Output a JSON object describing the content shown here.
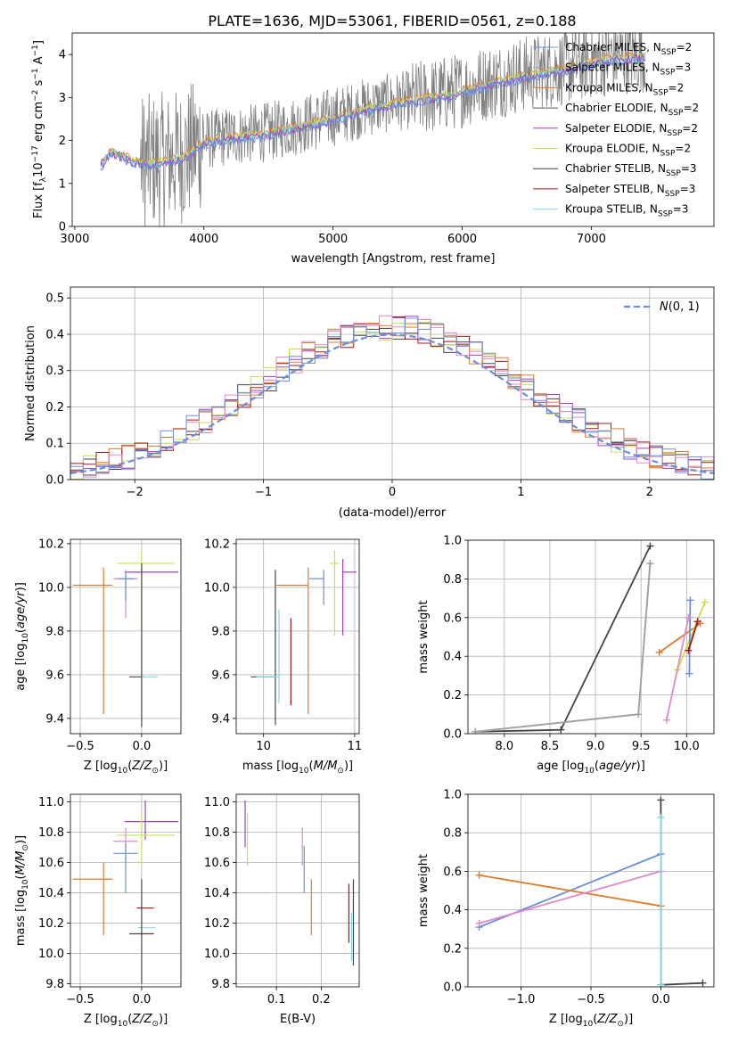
{
  "figure_title": "PLATE=1636, MJD=53061, FIBERID=0561, z=0.188",
  "colors": {
    "chabrier_miles": "#6a8fd9",
    "salpeter_miles": "#a0a0a0",
    "kroupa_miles": "#e07b2a",
    "chabrier_elodie": "#555555",
    "salpeter_elodie": "#a040c0",
    "kroupa_elodie": "#c8e050",
    "chabrier_stelib": "#444444",
    "salpeter_stelib": "#a01818",
    "kroupa_stelib": "#80d8e8",
    "pink": "#e08ac8",
    "normal_curve": "#6a8fd9",
    "data_spectrum": "#808080"
  },
  "legend_names": [
    "Chabrier MILES, N",
    "Salpeter MILES, N",
    "Kroupa MILES, N",
    "Chabrier ELODIE, N",
    "Salpeter ELODIE, N",
    "Kroupa ELODIE, N",
    "Chabrier STELIB, N",
    "Salpeter STELIB, N",
    "Kroupa STELIB, N"
  ],
  "legend_sub": "SSP",
  "legend_nssp": [
    "=2",
    "=3",
    "=2",
    "=2",
    "=2",
    "=2",
    "=3",
    "=3",
    "=3"
  ],
  "chart_data": [
    {
      "type": "line",
      "id": "spectrum",
      "xlabel": "wavelength [Angstrom, rest frame]",
      "ylabel": "Flux [f$_\\lambda$10$^{-17}$ erg cm$^{-2}$ s$^{-1}$ A$^{-1}$]",
      "xlim": [
        2980,
        7950
      ],
      "ylim": [
        0,
        4.5
      ],
      "xticks": [
        3000,
        4000,
        5000,
        6000,
        7000
      ],
      "yticks": [
        0,
        1,
        2,
        3,
        4
      ],
      "model_trend": {
        "x": [
          3200,
          3280,
          3350,
          3450,
          3550,
          3700,
          3850,
          4000,
          4200,
          4500,
          4800,
          5000,
          5300,
          5600,
          5900,
          6200,
          6500,
          6800,
          7000,
          7200,
          7400
        ],
        "y": [
          1.45,
          1.78,
          1.7,
          1.55,
          1.5,
          1.55,
          1.65,
          2.0,
          2.1,
          2.2,
          2.4,
          2.55,
          2.8,
          2.95,
          3.1,
          3.35,
          3.55,
          3.7,
          3.85,
          3.95,
          4.0
        ]
      }
    },
    {
      "type": "line",
      "id": "residual_hist",
      "xlabel": "(data-model)/error",
      "ylabel": "Normed distribution",
      "xlim": [
        -2.5,
        2.5
      ],
      "ylim": [
        0,
        0.53
      ],
      "xticks": [
        -2,
        -1,
        0,
        1,
        2
      ],
      "yticks": [
        0.0,
        0.1,
        0.2,
        0.3,
        0.4,
        0.5
      ],
      "legend_label": "N(0,1)",
      "bin_width": 0.1
    },
    {
      "type": "scatter",
      "id": "age_vs_Z",
      "xlabel": "Z [log10(Z/Z⊙)]",
      "ylabel": "age  [log10(age/yr)]",
      "xlim": [
        -0.58,
        0.32
      ],
      "ylim": [
        9.33,
        10.22
      ],
      "xticks": [
        -0.5,
        0.0
      ],
      "yticks": [
        9.4,
        9.6,
        9.8,
        10.0,
        10.2
      ],
      "points": [
        {
          "series": "kroupa_miles",
          "x": -0.31,
          "y": 10.01,
          "xerr": [
            0.25,
            0.07
          ],
          "yerr": [
            0.59,
            0.08
          ]
        },
        {
          "series": "salpeter_elodie",
          "x": 0.03,
          "y": 10.07,
          "xerr": [
            0.17,
            0.27
          ],
          "yerr": [
            0.0,
            0.0
          ]
        },
        {
          "series": "kroupa_elodie",
          "x": 0.0,
          "y": 10.11,
          "xerr": [
            0.2,
            0.27
          ],
          "yerr": [
            0.31,
            0.06
          ]
        },
        {
          "series": "pink",
          "x": -0.13,
          "y": 10.04,
          "xerr": [
            0.1,
            0.1
          ],
          "yerr": [
            0.18,
            0.04
          ]
        },
        {
          "series": "chabrier_miles",
          "x": -0.13,
          "y": 10.04,
          "xerr": [
            0.07,
            0.07
          ],
          "yerr": [
            0.1,
            0.03
          ]
        },
        {
          "series": "chabrier_stelib",
          "x": 0.0,
          "y": 9.59,
          "xerr": [
            0.1,
            0.02
          ],
          "yerr": [
            0.23,
            0.52
          ]
        },
        {
          "series": "kroupa_stelib",
          "x": 0.0,
          "y": 9.59,
          "xerr": [
            0.0,
            0.13
          ],
          "yerr": [
            0.0,
            0.0
          ]
        }
      ]
    },
    {
      "type": "scatter",
      "id": "age_vs_mass",
      "xlabel": "mass [log10(M/M⊙)]",
      "ylabel": "",
      "xlim": [
        9.7,
        11.05
      ],
      "ylim": [
        9.33,
        10.22
      ],
      "xticks": [
        10,
        11
      ],
      "yticks": [
        9.4,
        9.6,
        9.8,
        10.0,
        10.2
      ],
      "points": [
        {
          "series": "kroupa_miles",
          "x": 10.49,
          "y": 10.01,
          "xerr": [
            0.35,
            0.0
          ],
          "yerr": [
            0.59,
            0.08
          ]
        },
        {
          "series": "salpeter_elodie",
          "x": 10.87,
          "y": 10.07,
          "xerr": [
            0.0,
            0.15
          ],
          "yerr": [
            0.29,
            0.06
          ]
        },
        {
          "series": "kroupa_elodie",
          "x": 10.78,
          "y": 10.11,
          "xerr": [
            0.05,
            0.05
          ],
          "yerr": [
            0.33,
            0.06
          ]
        },
        {
          "series": "chabrier_stelib",
          "x": 10.13,
          "y": 9.59,
          "xerr": [
            0.27,
            0.0
          ],
          "yerr": [
            0.22,
            0.49
          ]
        },
        {
          "series": "kroupa_stelib",
          "x": 10.17,
          "y": 9.59,
          "xerr": [
            0.25,
            0.0
          ],
          "yerr": [
            0.12,
            0.31
          ]
        },
        {
          "series": "salpeter_stelib",
          "x": 10.3,
          "y": 9.59,
          "xerr": [
            0.0,
            0.0
          ],
          "yerr": [
            0.13,
            0.27
          ]
        },
        {
          "series": "chabrier_miles",
          "x": 10.66,
          "y": 10.04,
          "xerr": [
            0.16,
            0.0
          ],
          "yerr": [
            0.12,
            0.04
          ]
        }
      ]
    },
    {
      "type": "line",
      "id": "massweight_vs_age",
      "xlabel": "age  [log10(age/yr)]",
      "ylabel": "mass weight",
      "xlim": [
        7.6,
        10.3
      ],
      "ylim": [
        0,
        1.0
      ],
      "xticks": [
        8.0,
        8.5,
        9.0,
        9.5,
        10.0
      ],
      "yticks": [
        0.0,
        0.2,
        0.4,
        0.6,
        0.8,
        1.0
      ],
      "series": [
        {
          "key": "chabrier_stelib",
          "x": [
            7.68,
            8.62,
            9.6
          ],
          "y": [
            0.01,
            0.02,
            0.97
          ]
        },
        {
          "key": "kroupa_stelib",
          "x": [
            7.68,
            9.47,
            9.6
          ],
          "y": [
            0.01,
            0.1,
            0.88
          ]
        },
        {
          "key": "salpeter_miles",
          "x": [
            7.68,
            9.47,
            9.6
          ],
          "y": [
            0.01,
            0.1,
            0.88
          ]
        },
        {
          "key": "kroupa_miles",
          "x": [
            9.7,
            10.15
          ],
          "y": [
            0.42,
            0.57
          ]
        },
        {
          "key": "kroupa_elodie",
          "x": [
            9.9,
            10.2
          ],
          "y": [
            0.33,
            0.68
          ]
        },
        {
          "key": "chabrier_miles",
          "x": [
            10.03,
            10.04
          ],
          "y": [
            0.31,
            0.69
          ]
        },
        {
          "key": "pink",
          "x": [
            9.78,
            10.02
          ],
          "y": [
            0.07,
            0.6
          ]
        },
        {
          "key": "salpeter_stelib",
          "x": [
            10.02,
            10.12
          ],
          "y": [
            0.43,
            0.58
          ]
        }
      ]
    },
    {
      "type": "scatter",
      "id": "mass_vs_Z",
      "xlabel": "Z [log10(Z/Z⊙)]",
      "ylabel": "mass [log10(M/M⊙)]",
      "xlim": [
        -0.58,
        0.32
      ],
      "ylim": [
        9.78,
        11.05
      ],
      "xticks": [
        -0.5,
        0.0
      ],
      "yticks": [
        9.8,
        10.0,
        10.2,
        10.4,
        10.6,
        10.8,
        11.0
      ],
      "points": [
        {
          "series": "kroupa_miles",
          "x": -0.31,
          "y": 10.49,
          "xerr": [
            0.25,
            0.07
          ],
          "yerr": [
            0.37,
            0.11
          ]
        },
        {
          "series": "salpeter_elodie",
          "x": 0.03,
          "y": 10.87,
          "xerr": [
            0.17,
            0.27
          ],
          "yerr": [
            0.12,
            0.14
          ]
        },
        {
          "series": "kroupa_elodie",
          "x": 0.0,
          "y": 10.78,
          "xerr": [
            0.2,
            0.27
          ],
          "yerr": [
            0.2,
            0.14
          ]
        },
        {
          "series": "pink",
          "x": -0.13,
          "y": 10.74,
          "xerr": [
            0.1,
            0.1
          ],
          "yerr": [
            0.16,
            0.09
          ]
        },
        {
          "series": "chabrier_miles",
          "x": -0.13,
          "y": 10.66,
          "xerr": [
            0.1,
            0.1
          ],
          "yerr": [
            0.26,
            0.07
          ]
        },
        {
          "series": "salpeter_stelib",
          "x": 0.03,
          "y": 10.3,
          "xerr": [
            0.07,
            0.07
          ],
          "yerr": [
            0.0,
            0.0
          ]
        },
        {
          "series": "kroupa_stelib",
          "x": 0.04,
          "y": 10.17,
          "xerr": [
            0.07,
            0.07
          ],
          "yerr": [
            0.0,
            0.0
          ]
        },
        {
          "series": "chabrier_stelib",
          "x": 0.0,
          "y": 10.13,
          "xerr": [
            0.1,
            0.1
          ],
          "yerr": [
            0.33,
            0.36
          ]
        }
      ]
    },
    {
      "type": "scatter",
      "id": "mass_vs_EBV",
      "xlabel": "E(B-V)",
      "ylabel": "",
      "xlim": [
        0.01,
        0.285
      ],
      "ylim": [
        9.78,
        11.05
      ],
      "xticks": [
        0.1,
        0.2
      ],
      "yticks": [
        9.8,
        10.0,
        10.2,
        10.4,
        10.6,
        10.8,
        11.0
      ],
      "points": [
        {
          "series": "salpeter_elodie",
          "x": 0.03,
          "y": 10.87,
          "xerr": [
            0,
            0
          ],
          "yerr": [
            0.17,
            0.14
          ]
        },
        {
          "series": "kroupa_elodie",
          "x": 0.035,
          "y": 10.78,
          "xerr": [
            0,
            0
          ],
          "yerr": [
            0.2,
            0.15
          ]
        },
        {
          "series": "pink",
          "x": 0.158,
          "y": 10.74,
          "xerr": [
            0,
            0
          ],
          "yerr": [
            0.16,
            0.09
          ]
        },
        {
          "series": "chabrier_miles",
          "x": 0.162,
          "y": 10.6,
          "xerr": [
            0,
            0
          ],
          "yerr": [
            0.2,
            0.11
          ]
        },
        {
          "series": "kroupa_miles",
          "x": 0.178,
          "y": 10.32,
          "xerr": [
            0,
            0
          ],
          "yerr": [
            0.2,
            0.17
          ]
        },
        {
          "series": "salpeter_stelib",
          "x": 0.262,
          "y": 10.26,
          "xerr": [
            0,
            0
          ],
          "yerr": [
            0.19,
            0.2
          ]
        },
        {
          "series": "chabrier_stelib",
          "x": 0.272,
          "y": 10.22,
          "xerr": [
            0,
            0
          ],
          "yerr": [
            0.3,
            0.27
          ]
        },
        {
          "series": "kroupa_stelib",
          "x": 0.268,
          "y": 10.1,
          "xerr": [
            0,
            0
          ],
          "yerr": [
            0.15,
            0.17
          ]
        }
      ]
    },
    {
      "type": "line",
      "id": "massweight_vs_Z",
      "xlabel": "Z [log10(Z/Z⊙)]",
      "ylabel": "mass weight",
      "xlim": [
        -1.38,
        0.38
      ],
      "ylim": [
        0,
        1.0
      ],
      "xticks": [
        -1.0,
        -0.5,
        0.0
      ],
      "yticks": [
        0.0,
        0.2,
        0.4,
        0.6,
        0.8,
        1.0
      ],
      "series": [
        {
          "key": "chabrier_miles",
          "x": [
            -1.3,
            0.0
          ],
          "y": [
            0.31,
            0.69
          ]
        },
        {
          "key": "kroupa_miles",
          "x": [
            -1.3,
            0.0
          ],
          "y": [
            0.58,
            0.42
          ]
        },
        {
          "key": "pink",
          "x": [
            -1.3,
            0.0
          ],
          "y": [
            0.33,
            0.6
          ]
        },
        {
          "key": "chabrier_stelib",
          "x": [
            0.0,
            0.3
          ],
          "y": [
            0.01,
            0.02
          ]
        },
        {
          "key": "chabrier_stelib",
          "x": [
            0.0,
            0.0
          ],
          "y": [
            0.01,
            0.97
          ]
        },
        {
          "key": "kroupa_stelib",
          "x": [
            0.0,
            0.0
          ],
          "y": [
            0.01,
            0.88
          ]
        }
      ]
    }
  ]
}
